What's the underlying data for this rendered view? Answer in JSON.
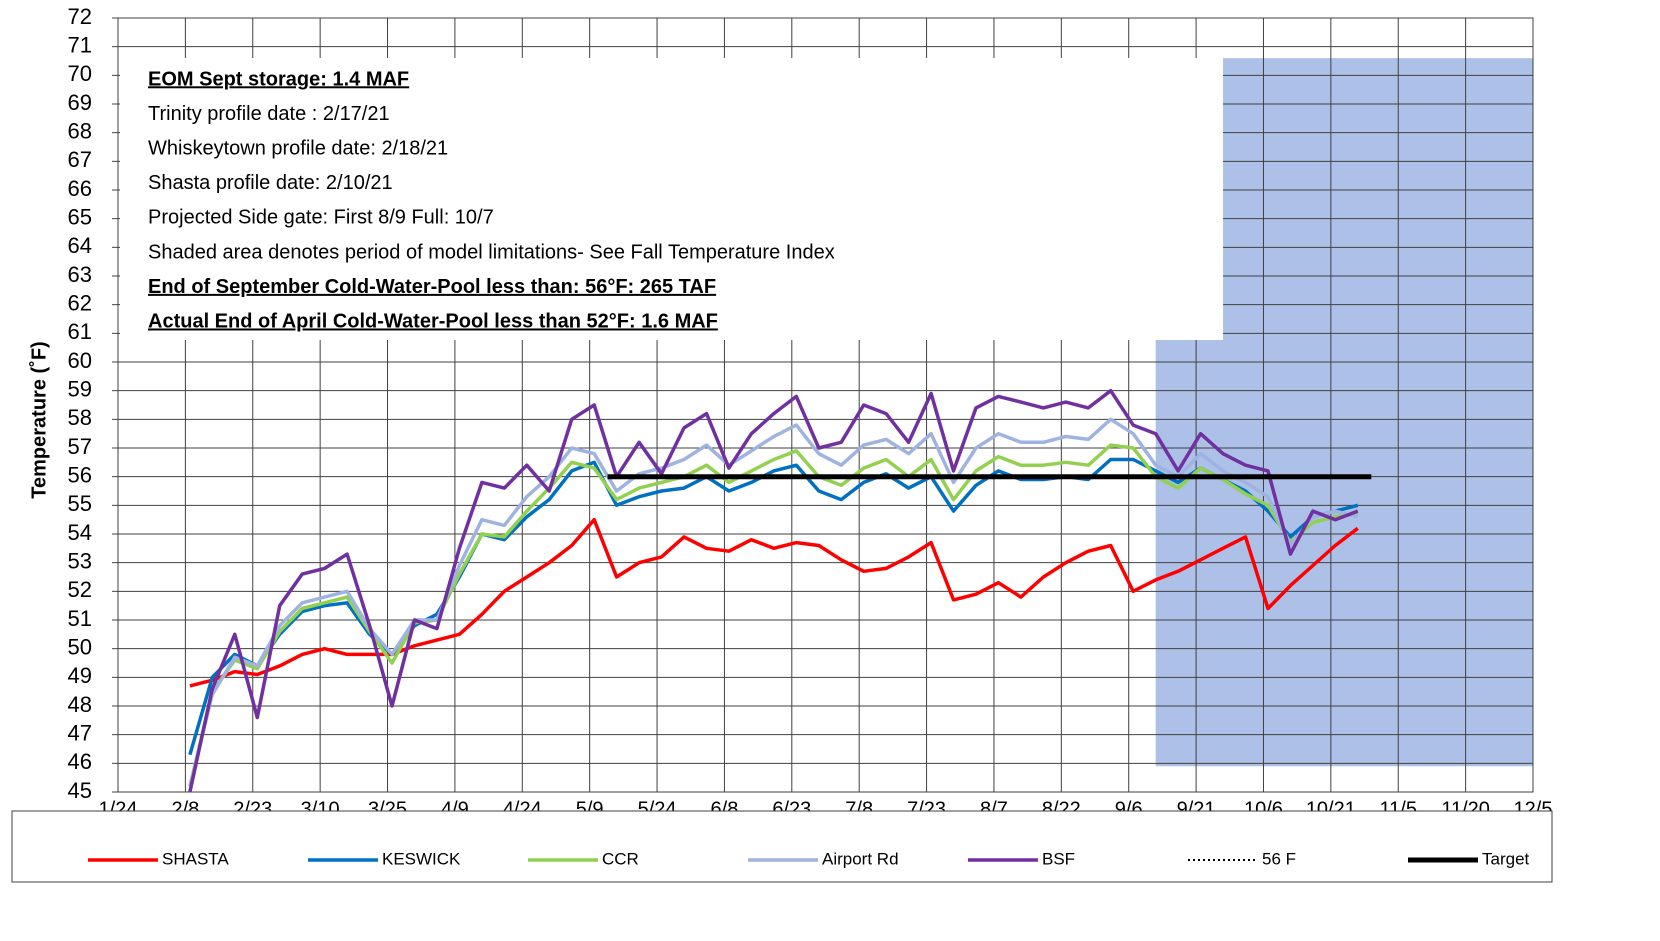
{
  "chart_data": {
    "type": "line",
    "y_label": "Temperature (˚F)",
    "xlim": [
      "1/24",
      "12/5"
    ],
    "xticks": [
      "1/24",
      "2/8",
      "2/23",
      "3/10",
      "3/25",
      "4/9",
      "4/24",
      "5/9",
      "5/24",
      "6/8",
      "6/23",
      "7/8",
      "7/23",
      "8/7",
      "8/22",
      "9/6",
      "9/21",
      "10/6",
      "10/21",
      "11/5",
      "11/20",
      "12/5"
    ],
    "ylim": [
      45,
      72
    ],
    "yticks": [
      45,
      46,
      47,
      48,
      49,
      50,
      51,
      52,
      53,
      54,
      55,
      56,
      57,
      58,
      59,
      60,
      61,
      62,
      63,
      64,
      65,
      66,
      67,
      68,
      69,
      70,
      71,
      72
    ],
    "grid": true,
    "shaded_region": {
      "x": [
        "9/12",
        "12/5"
      ],
      "y": [
        45.9,
        70.6
      ],
      "color": "#a9bde6"
    },
    "annotations": [
      {
        "text": "EOM Sept storage: 1.4 MAF",
        "bold": true,
        "underline": true
      },
      {
        "text": "Trinity profile date : 2/17/21",
        "bold": false,
        "underline": false
      },
      {
        "text": "Whiskeytown profile date: 2/18/21",
        "bold": false,
        "underline": false
      },
      {
        "text": "Shasta profile date: 2/10/21",
        "bold": false,
        "underline": false
      },
      {
        "text": "Projected Side gate: First  8/9  Full:  10/7",
        "bold": false,
        "underline": false
      },
      {
        "text": "Shaded area denotes period of model limitations- See Fall Temperature Index",
        "bold": false,
        "underline": false
      },
      {
        "text": "End of September Cold-Water-Pool less than: 56°F: 265 TAF",
        "bold": true,
        "underline": true
      },
      {
        "text": "Actual End of April Cold-Water-Pool less than 52°F: 1.6 MAF",
        "bold": true,
        "underline": true
      }
    ],
    "x": [
      "2/9",
      "2/14",
      "2/19",
      "2/24",
      "3/1",
      "3/6",
      "3/11",
      "3/16",
      "3/21",
      "3/26",
      "3/31",
      "4/5",
      "4/10",
      "4/15",
      "4/20",
      "4/25",
      "4/30",
      "5/5",
      "5/10",
      "5/15",
      "5/20",
      "5/25",
      "5/30",
      "6/4",
      "6/9",
      "6/14",
      "6/19",
      "6/24",
      "6/29",
      "7/4",
      "7/9",
      "7/14",
      "7/19",
      "7/24",
      "7/29",
      "8/3",
      "8/8",
      "8/13",
      "8/18",
      "8/23",
      "8/28",
      "9/2",
      "9/7",
      "9/12",
      "9/17",
      "9/22",
      "9/27",
      "10/2",
      "10/7",
      "10/12",
      "10/17",
      "10/22",
      "10/27"
    ],
    "series": [
      {
        "name": "SHASTA",
        "color": "#ff0000",
        "dash": "solid",
        "values": [
          48.7,
          48.9,
          49.2,
          49.1,
          49.4,
          49.8,
          50.0,
          49.8,
          49.8,
          49.8,
          50.1,
          50.3,
          50.5,
          51.2,
          52.0,
          52.5,
          53.0,
          53.6,
          54.5,
          52.5,
          53.0,
          53.2,
          53.9,
          53.5,
          53.4,
          53.8,
          53.5,
          53.7,
          53.6,
          53.1,
          52.7,
          52.8,
          53.2,
          53.7,
          51.7,
          51.9,
          52.3,
          51.8,
          52.5,
          53.0,
          53.4,
          53.6,
          52.0,
          52.4,
          52.7,
          53.1,
          53.5,
          53.9,
          51.4,
          52.2,
          52.9,
          53.6,
          54.2
        ]
      },
      {
        "name": "KESWICK",
        "color": "#0070c0",
        "dash": "solid",
        "values": [
          46.3,
          49.0,
          49.8,
          49.4,
          50.5,
          51.3,
          51.5,
          51.6,
          50.5,
          49.8,
          50.8,
          51.2,
          52.5,
          54.0,
          53.8,
          54.6,
          55.2,
          56.2,
          56.5,
          55.0,
          55.3,
          55.5,
          55.6,
          56.0,
          55.5,
          55.8,
          56.2,
          56.4,
          55.5,
          55.2,
          55.8,
          56.1,
          55.6,
          56.0,
          54.8,
          55.7,
          56.2,
          55.9,
          55.9,
          56.0,
          55.9,
          56.6,
          56.6,
          56.2,
          55.8,
          56.3,
          55.9,
          55.5,
          54.8,
          53.9,
          54.6,
          54.8,
          55.0
        ]
      },
      {
        "name": "CCR",
        "color": "#92d050",
        "dash": "solid",
        "values": [
          45.2,
          48.5,
          49.6,
          49.3,
          50.6,
          51.4,
          51.6,
          51.8,
          50.6,
          49.5,
          50.9,
          51.0,
          52.6,
          54.0,
          53.9,
          54.8,
          55.6,
          56.5,
          56.3,
          55.2,
          55.6,
          55.8,
          56.0,
          56.4,
          55.8,
          56.2,
          56.6,
          56.9,
          56.0,
          55.7,
          56.3,
          56.6,
          56.0,
          56.6,
          55.2,
          56.2,
          56.7,
          56.4,
          56.4,
          56.5,
          56.4,
          57.1,
          57.0,
          56.0,
          55.6,
          56.3,
          55.9,
          55.4,
          55.0,
          53.7,
          54.4,
          54.6,
          54.7
        ]
      },
      {
        "name": "Airport Rd",
        "color": "#9fb3e0",
        "dash": "solid",
        "values": [
          45.2,
          48.4,
          49.7,
          49.4,
          50.8,
          51.6,
          51.8,
          52.0,
          50.7,
          49.8,
          51.0,
          51.0,
          52.9,
          54.5,
          54.3,
          55.3,
          56.0,
          57.0,
          56.8,
          55.5,
          56.1,
          56.3,
          56.6,
          57.1,
          56.4,
          56.9,
          57.4,
          57.8,
          56.8,
          56.4,
          57.1,
          57.3,
          56.8,
          57.5,
          55.8,
          57.0,
          57.5,
          57.2,
          57.2,
          57.4,
          57.3,
          58.0,
          57.5,
          56.4,
          56.0,
          56.8,
          56.2,
          55.8,
          55.3,
          53.6,
          54.6,
          54.8,
          54.6
        ]
      },
      {
        "name": "BSF",
        "color": "#7030a0",
        "dash": "solid",
        "values": [
          45.0,
          48.6,
          50.5,
          47.6,
          51.5,
          52.6,
          52.8,
          53.3,
          50.8,
          48.0,
          51.0,
          50.7,
          53.5,
          55.8,
          55.6,
          56.4,
          55.5,
          58.0,
          58.5,
          56.0,
          57.2,
          56.1,
          57.7,
          58.2,
          56.3,
          57.5,
          58.2,
          58.8,
          57.0,
          57.2,
          58.5,
          58.2,
          57.2,
          58.9,
          56.2,
          58.4,
          58.8,
          58.6,
          58.4,
          58.6,
          58.4,
          59.0,
          57.8,
          57.5,
          56.2,
          57.5,
          56.8,
          56.4,
          56.2,
          53.3,
          54.8,
          54.5,
          54.8
        ]
      },
      {
        "name": "56 F",
        "color": "#000000",
        "dash": "dotted",
        "x": [
          "5/13",
          "10/30"
        ],
        "values": [
          56,
          56
        ]
      },
      {
        "name": "Target",
        "color": "#000000",
        "dash": "solid",
        "x": [
          "5/13",
          "10/30"
        ],
        "values": [
          56,
          56
        ]
      }
    ]
  }
}
